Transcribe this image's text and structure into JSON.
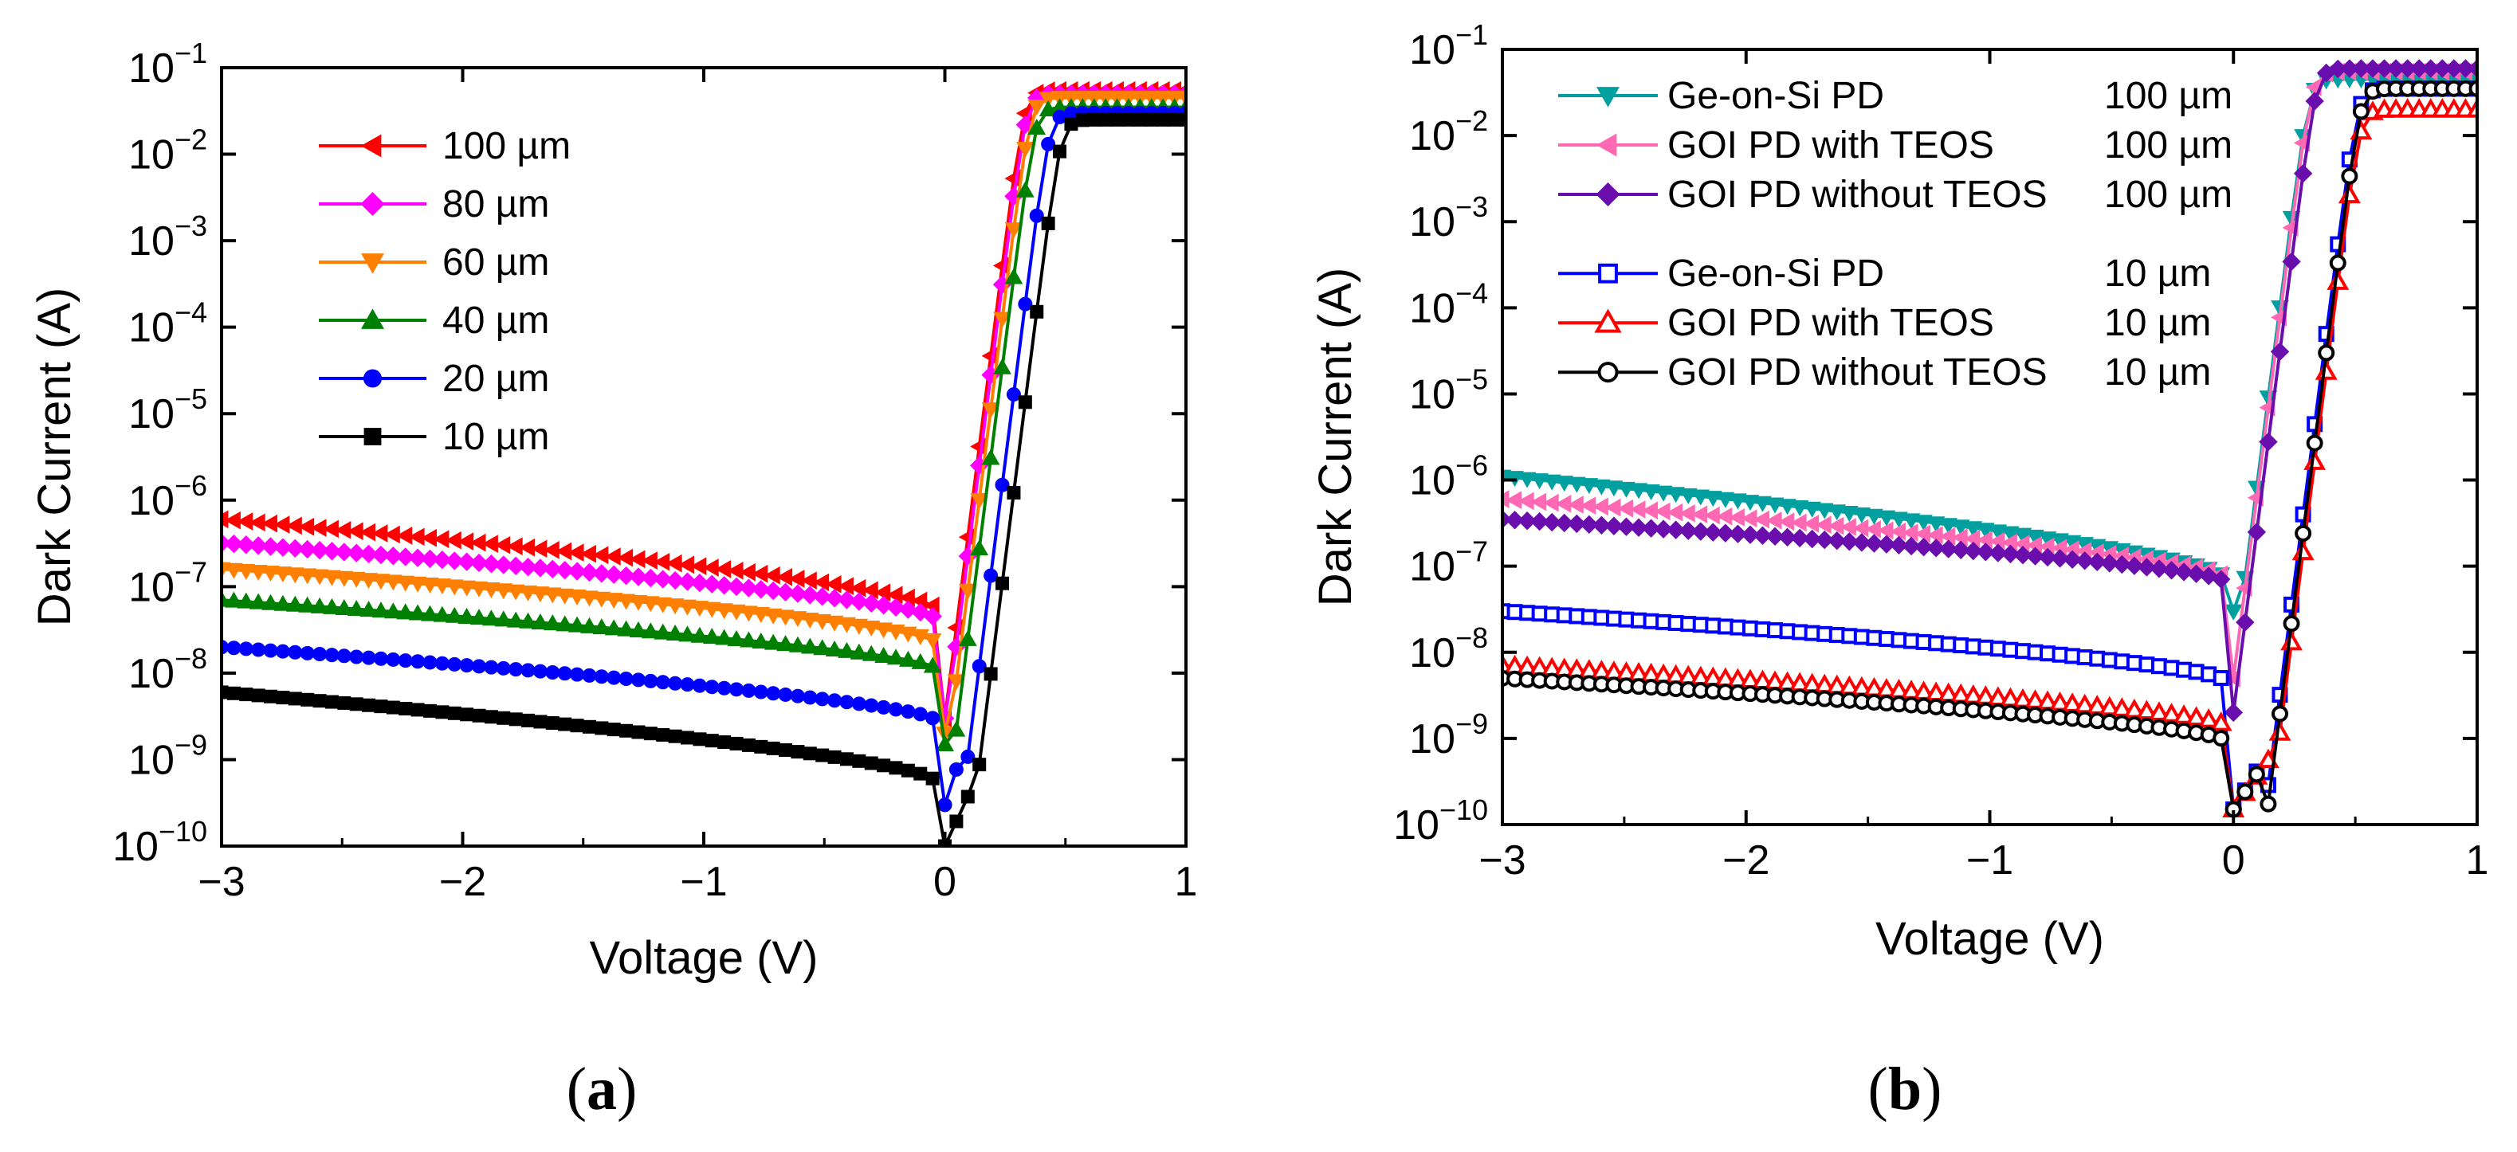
{
  "chart_data": [
    {
      "panel": "a",
      "type": "line",
      "xlabel": "Voltage (V)",
      "ylabel": "Dark Current (A)",
      "xlim": [
        -3,
        1
      ],
      "ylim_log10": [
        -10,
        -1
      ],
      "yscale": "log",
      "xticks": [
        {
          "value": -3,
          "label": "−3"
        },
        {
          "value": -2,
          "label": "−2"
        },
        {
          "value": -1,
          "label": "−1"
        },
        {
          "value": 0,
          "label": "0"
        },
        {
          "value": 1,
          "label": "1"
        }
      ],
      "yticks": [
        {
          "exp": -1,
          "base": "10",
          "sup": "−1"
        },
        {
          "exp": -2,
          "base": "10",
          "sup": "−2"
        },
        {
          "exp": -3,
          "base": "10",
          "sup": "−3"
        },
        {
          "exp": -4,
          "base": "10",
          "sup": "−4"
        },
        {
          "exp": -5,
          "base": "10",
          "sup": "−5"
        },
        {
          "exp": -6,
          "base": "10",
          "sup": "−6"
        },
        {
          "exp": -7,
          "base": "10",
          "sup": "−7"
        },
        {
          "exp": -8,
          "base": "10",
          "sup": "−8"
        },
        {
          "exp": -9,
          "base": "10",
          "sup": "−9"
        },
        {
          "exp": -10,
          "base": "10",
          "sup": "−10"
        }
      ],
      "legend_position": "top-left",
      "series": [
        {
          "name": "100 µm",
          "size": "",
          "color": "#ff0000",
          "marker": "tri-left",
          "filled": true,
          "rev_a": 6e-07,
          "rev_b": 6e-08,
          "zero": 3e-09,
          "fwd_shift": 0.0,
          "sat": 0.055
        },
        {
          "name": "80 µm",
          "size": "",
          "color": "#ff00ff",
          "marker": "diamond",
          "filled": true,
          "rev_a": 3.2e-07,
          "rev_b": 4.5e-08,
          "zero": 3e-09,
          "fwd_shift": 0.01,
          "sat": 0.05
        },
        {
          "name": "60 µm",
          "size": "",
          "color": "#ff8000",
          "marker": "tri-down",
          "filled": true,
          "rev_a": 1.6e-07,
          "rev_b": 2.4e-08,
          "zero": 2e-09,
          "fwd_shift": 0.02,
          "sat": 0.045
        },
        {
          "name": "40 µm",
          "size": "",
          "color": "#008000",
          "marker": "tri-up",
          "filled": true,
          "rev_a": 7e-08,
          "rev_b": 1.2e-08,
          "zero": 1.5e-09,
          "fwd_shift": 0.04,
          "sat": 0.035
        },
        {
          "name": "20 µm",
          "size": "",
          "color": "#0000ff",
          "marker": "circle",
          "filled": true,
          "rev_a": 2e-08,
          "rev_b": 3e-09,
          "zero": 3e-10,
          "fwd_shift": 0.07,
          "sat": 0.03
        },
        {
          "name": "10 µm",
          "size": "",
          "color": "#000000",
          "marker": "square",
          "filled": true,
          "rev_a": 6e-09,
          "rev_b": 6e-10,
          "zero": 1e-10,
          "fwd_shift": 0.1,
          "sat": 0.025
        }
      ]
    },
    {
      "panel": "b",
      "type": "line",
      "xlabel": "Voltage (V)",
      "ylabel": "Dark Current (A)",
      "xlim": [
        -3,
        1
      ],
      "ylim_log10": [
        -10,
        -1
      ],
      "yscale": "log",
      "xticks": [
        {
          "value": -3,
          "label": "−3"
        },
        {
          "value": -2,
          "label": "−2"
        },
        {
          "value": -1,
          "label": "−1"
        },
        {
          "value": 0,
          "label": "0"
        },
        {
          "value": 1,
          "label": "1"
        }
      ],
      "yticks": [
        {
          "exp": -1,
          "base": "10",
          "sup": "−1"
        },
        {
          "exp": -2,
          "base": "10",
          "sup": "−2"
        },
        {
          "exp": -3,
          "base": "10",
          "sup": "−3"
        },
        {
          "exp": -4,
          "base": "10",
          "sup": "−4"
        },
        {
          "exp": -5,
          "base": "10",
          "sup": "−5"
        },
        {
          "exp": -6,
          "base": "10",
          "sup": "−6"
        },
        {
          "exp": -7,
          "base": "10",
          "sup": "−7"
        },
        {
          "exp": -8,
          "base": "10",
          "sup": "−8"
        },
        {
          "exp": -9,
          "base": "10",
          "sup": "−9"
        },
        {
          "exp": -10,
          "base": "10",
          "sup": "−10"
        }
      ],
      "legend_position": "top-left",
      "series": [
        {
          "name": "Ge-on-Si PD",
          "size": "100 µm",
          "color": "#00a0a0",
          "marker": "tri-down",
          "filled": true,
          "rev_a": 1.1e-06,
          "rev_b": 8e-08,
          "zero": 3e-08,
          "fwd_shift": 0.03,
          "sat": 0.045
        },
        {
          "name": "GOI PD with TEOS",
          "size": "100 µm",
          "color": "#ff69b4",
          "marker": "tri-left",
          "filled": true,
          "rev_a": 6e-07,
          "rev_b": 8e-08,
          "zero": 5e-09,
          "fwd_shift": 0.0,
          "sat": 0.055
        },
        {
          "name": "GOI PD without TEOS",
          "size": "100 µm",
          "color": "#6a0dad",
          "marker": "diamond",
          "filled": true,
          "rev_a": 3.5e-07,
          "rev_b": 7e-08,
          "zero": 2e-09,
          "fwd_shift": 0.0,
          "sat": 0.06
        },
        {
          "name": "Ge-on-Si PD",
          "size": "10 µm",
          "color": "#0000ff",
          "marker": "square",
          "filled": false,
          "rev_a": 3e-08,
          "rev_b": 5e-09,
          "zero": 1.5e-10,
          "fwd_shift": 0.13,
          "sat": 0.035
        },
        {
          "name": "GOI PD with TEOS",
          "size": "10 µm",
          "color": "#ff0000",
          "marker": "tri-up",
          "filled": false,
          "rev_a": 7e-09,
          "rev_b": 1.5e-09,
          "zero": 1.5e-10,
          "fwd_shift": 0.15,
          "sat": 0.02
        },
        {
          "name": "GOI PD without TEOS",
          "size": "10 µm",
          "color": "#000000",
          "marker": "circle",
          "filled": false,
          "rev_a": 5e-09,
          "rev_b": 1e-09,
          "zero": 1.5e-10,
          "fwd_shift": 0.14,
          "sat": 0.035
        }
      ]
    }
  ],
  "captions": {
    "a": {
      "open": "(",
      "letter": "a",
      "close": ")"
    },
    "b": {
      "open": "(",
      "letter": "b",
      "close": ")"
    }
  }
}
